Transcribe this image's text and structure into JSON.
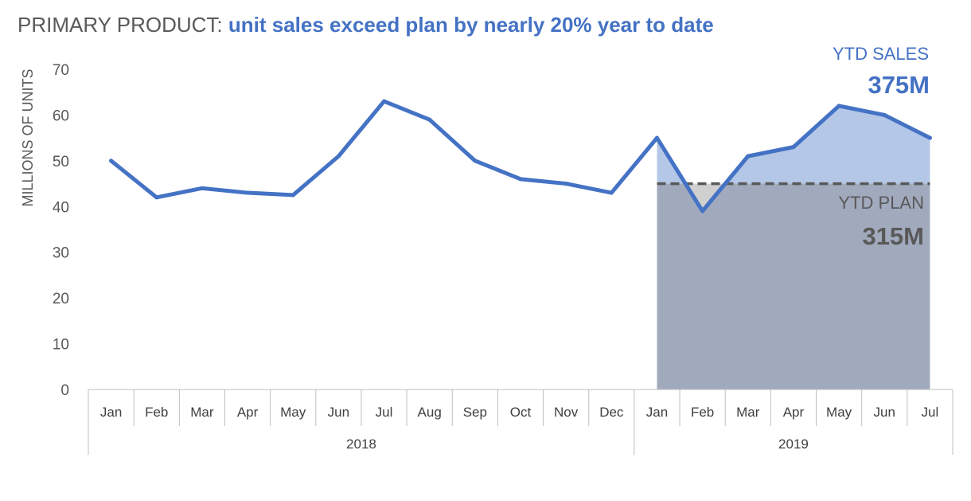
{
  "title": {
    "prefix": "PRIMARY PRODUCT: ",
    "emphasis": "unit sales exceed plan by nearly 20% year to date"
  },
  "annotations": {
    "ytd_sales_label": "YTD SALES",
    "ytd_sales_value": "375M",
    "ytd_plan_label": "YTD PLAN",
    "ytd_plan_value": "315M"
  },
  "colors": {
    "line": "#4472c4",
    "sales_area": "#b4c7e7",
    "plan_area": "#a1aabd",
    "below_plan_gap": "#d0d0d0",
    "plan_line": "#595959",
    "title_gray": "#595959"
  },
  "chart_data": {
    "type": "line",
    "title": "PRIMARY PRODUCT: unit sales exceed plan by nearly 20% year to date",
    "ylabel": "MILLIONS OF UNITS",
    "xlabel": "",
    "ylim": [
      0,
      70
    ],
    "yticks": [
      0,
      10,
      20,
      30,
      40,
      50,
      60,
      70
    ],
    "grid": false,
    "categories": [
      "Jan",
      "Feb",
      "Mar",
      "Apr",
      "May",
      "Jun",
      "Jul",
      "Aug",
      "Sep",
      "Oct",
      "Nov",
      "Dec",
      "Jan",
      "Feb",
      "Mar",
      "Apr",
      "May",
      "Jun",
      "Jul"
    ],
    "groups": [
      {
        "label": "2018",
        "count": 12
      },
      {
        "label": "2019",
        "count": 7
      }
    ],
    "series": [
      {
        "values": [
          50,
          42,
          44,
          43,
          42.5,
          51,
          63,
          59,
          50,
          46,
          45,
          43,
          55,
          39,
          51,
          53,
          62,
          60,
          55
        ]
      }
    ],
    "plan": {
      "value": 45,
      "start_index": 12,
      "end_index": 18
    }
  }
}
